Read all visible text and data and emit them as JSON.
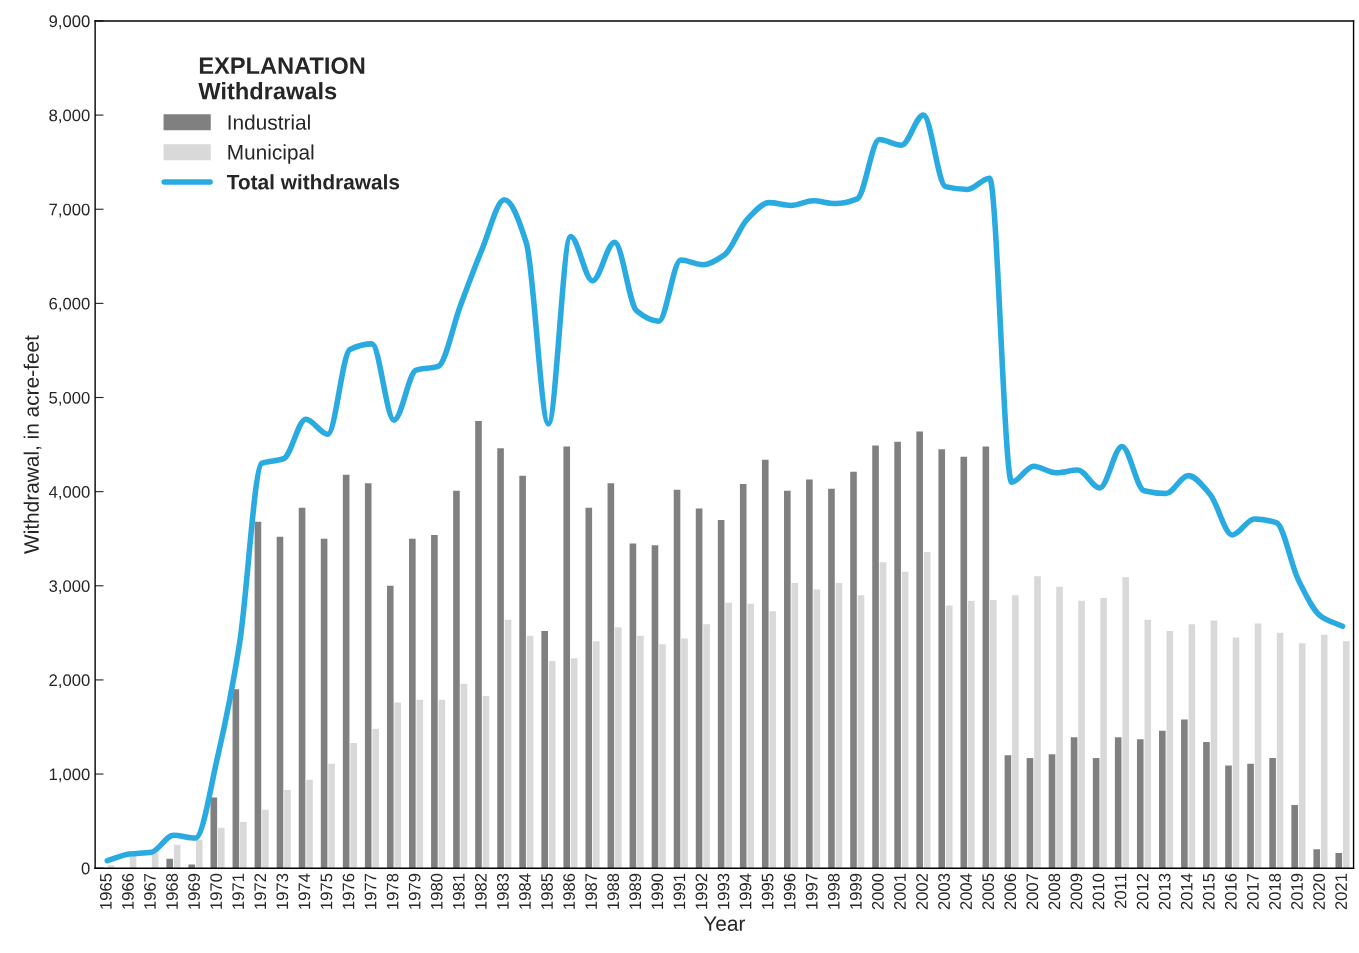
{
  "chart_data": {
    "type": "bar",
    "xlabel": "Year",
    "ylabel": "Withdrawal, in acre-feet",
    "legend_title": "EXPLANATION\nWithdrawals",
    "legend": "top left",
    "grid": false,
    "categories": [
      "1965",
      "1966",
      "1967",
      "1968",
      "1969",
      "1970",
      "1971",
      "1972",
      "1973",
      "1974",
      "1975",
      "1976",
      "1977",
      "1978",
      "1979",
      "1980",
      "1981",
      "1982",
      "1983",
      "1984",
      "1985",
      "1986",
      "1987",
      "1988",
      "1989",
      "1990",
      "1991",
      "1992",
      "1993",
      "1994",
      "1995",
      "1996",
      "1997",
      "1998",
      "1999",
      "2000",
      "2001",
      "2002",
      "2003",
      "2004",
      "2005",
      "2006",
      "2007",
      "2008",
      "2009",
      "2010",
      "2011",
      "2012",
      "2013",
      "2014",
      "2015",
      "2016",
      "2017",
      "2018",
      "2019",
      "2020",
      "2021"
    ],
    "ylim": [
      0,
      9000
    ],
    "yticks": [
      0,
      {
        "value": 1000,
        "label": "1,000"
      },
      {
        "value": 2000,
        "label": "2,000"
      },
      {
        "value": 3000,
        "label": "3,000"
      },
      {
        "value": 4000,
        "label": "4,000"
      },
      {
        "value": 5000,
        "label": "5,000"
      },
      {
        "value": 6000,
        "label": "6,000"
      },
      {
        "value": 7000,
        "label": "7,000"
      },
      {
        "value": 8000,
        "label": "8,000"
      },
      {
        "value": 9000,
        "label": "9,000"
      }
    ],
    "series": [
      {
        "name": "Industrial",
        "color": "#808080",
        "values": [
          0,
          0,
          0,
          100,
          40,
          750,
          1900,
          3680,
          3520,
          3830,
          3500,
          4180,
          4090,
          3000,
          3500,
          3540,
          4010,
          4750,
          4460,
          4170,
          2520,
          4480,
          3830,
          4090,
          3450,
          3430,
          4020,
          3820,
          3700,
          4080,
          4340,
          4010,
          4130,
          4030,
          4210,
          4490,
          4530,
          4640,
          4450,
          4370,
          4480,
          1200,
          1170,
          1210,
          1390,
          1170,
          1390,
          1370,
          1460,
          1580,
          1340,
          1090,
          1110,
          1170,
          670,
          200,
          160
        ]
      },
      {
        "name": "Municipal",
        "color": "#d9d9d9",
        "values": [
          30,
          130,
          170,
          250,
          300,
          430,
          490,
          620,
          830,
          940,
          1110,
          1330,
          1480,
          1760,
          1790,
          1790,
          1960,
          1830,
          2640,
          2470,
          2200,
          2230,
          2410,
          2560,
          2470,
          2380,
          2440,
          2590,
          2820,
          2810,
          2730,
          3030,
          2960,
          3030,
          2900,
          3250,
          3150,
          3360,
          2790,
          2840,
          2850,
          2900,
          3100,
          2990,
          2840,
          2870,
          3090,
          2640,
          2520,
          2590,
          2630,
          2450,
          2600,
          2500,
          2390,
          2480,
          2410
        ]
      },
      {
        "name": "Total withdrawals",
        "type": "line",
        "color": "#29abe2",
        "marker": "none",
        "line_style": "solid",
        "values": [
          80,
          150,
          170,
          350,
          320,
          1180,
          2390,
          4300,
          4350,
          4770,
          4610,
          5510,
          5570,
          4760,
          5290,
          5330,
          5970,
          6580,
          7100,
          6640,
          4720,
          6710,
          6240,
          6650,
          5920,
          5810,
          6460,
          6410,
          6520,
          6890,
          7070,
          7040,
          7090,
          7060,
          7110,
          7740,
          7680,
          8000,
          7240,
          7210,
          7330,
          4100,
          4270,
          4200,
          4230,
          4040,
          4480,
          4010,
          3980,
          4170,
          3970,
          3540,
          3710,
          3670,
          3060,
          2680,
          2570
        ]
      }
    ]
  }
}
